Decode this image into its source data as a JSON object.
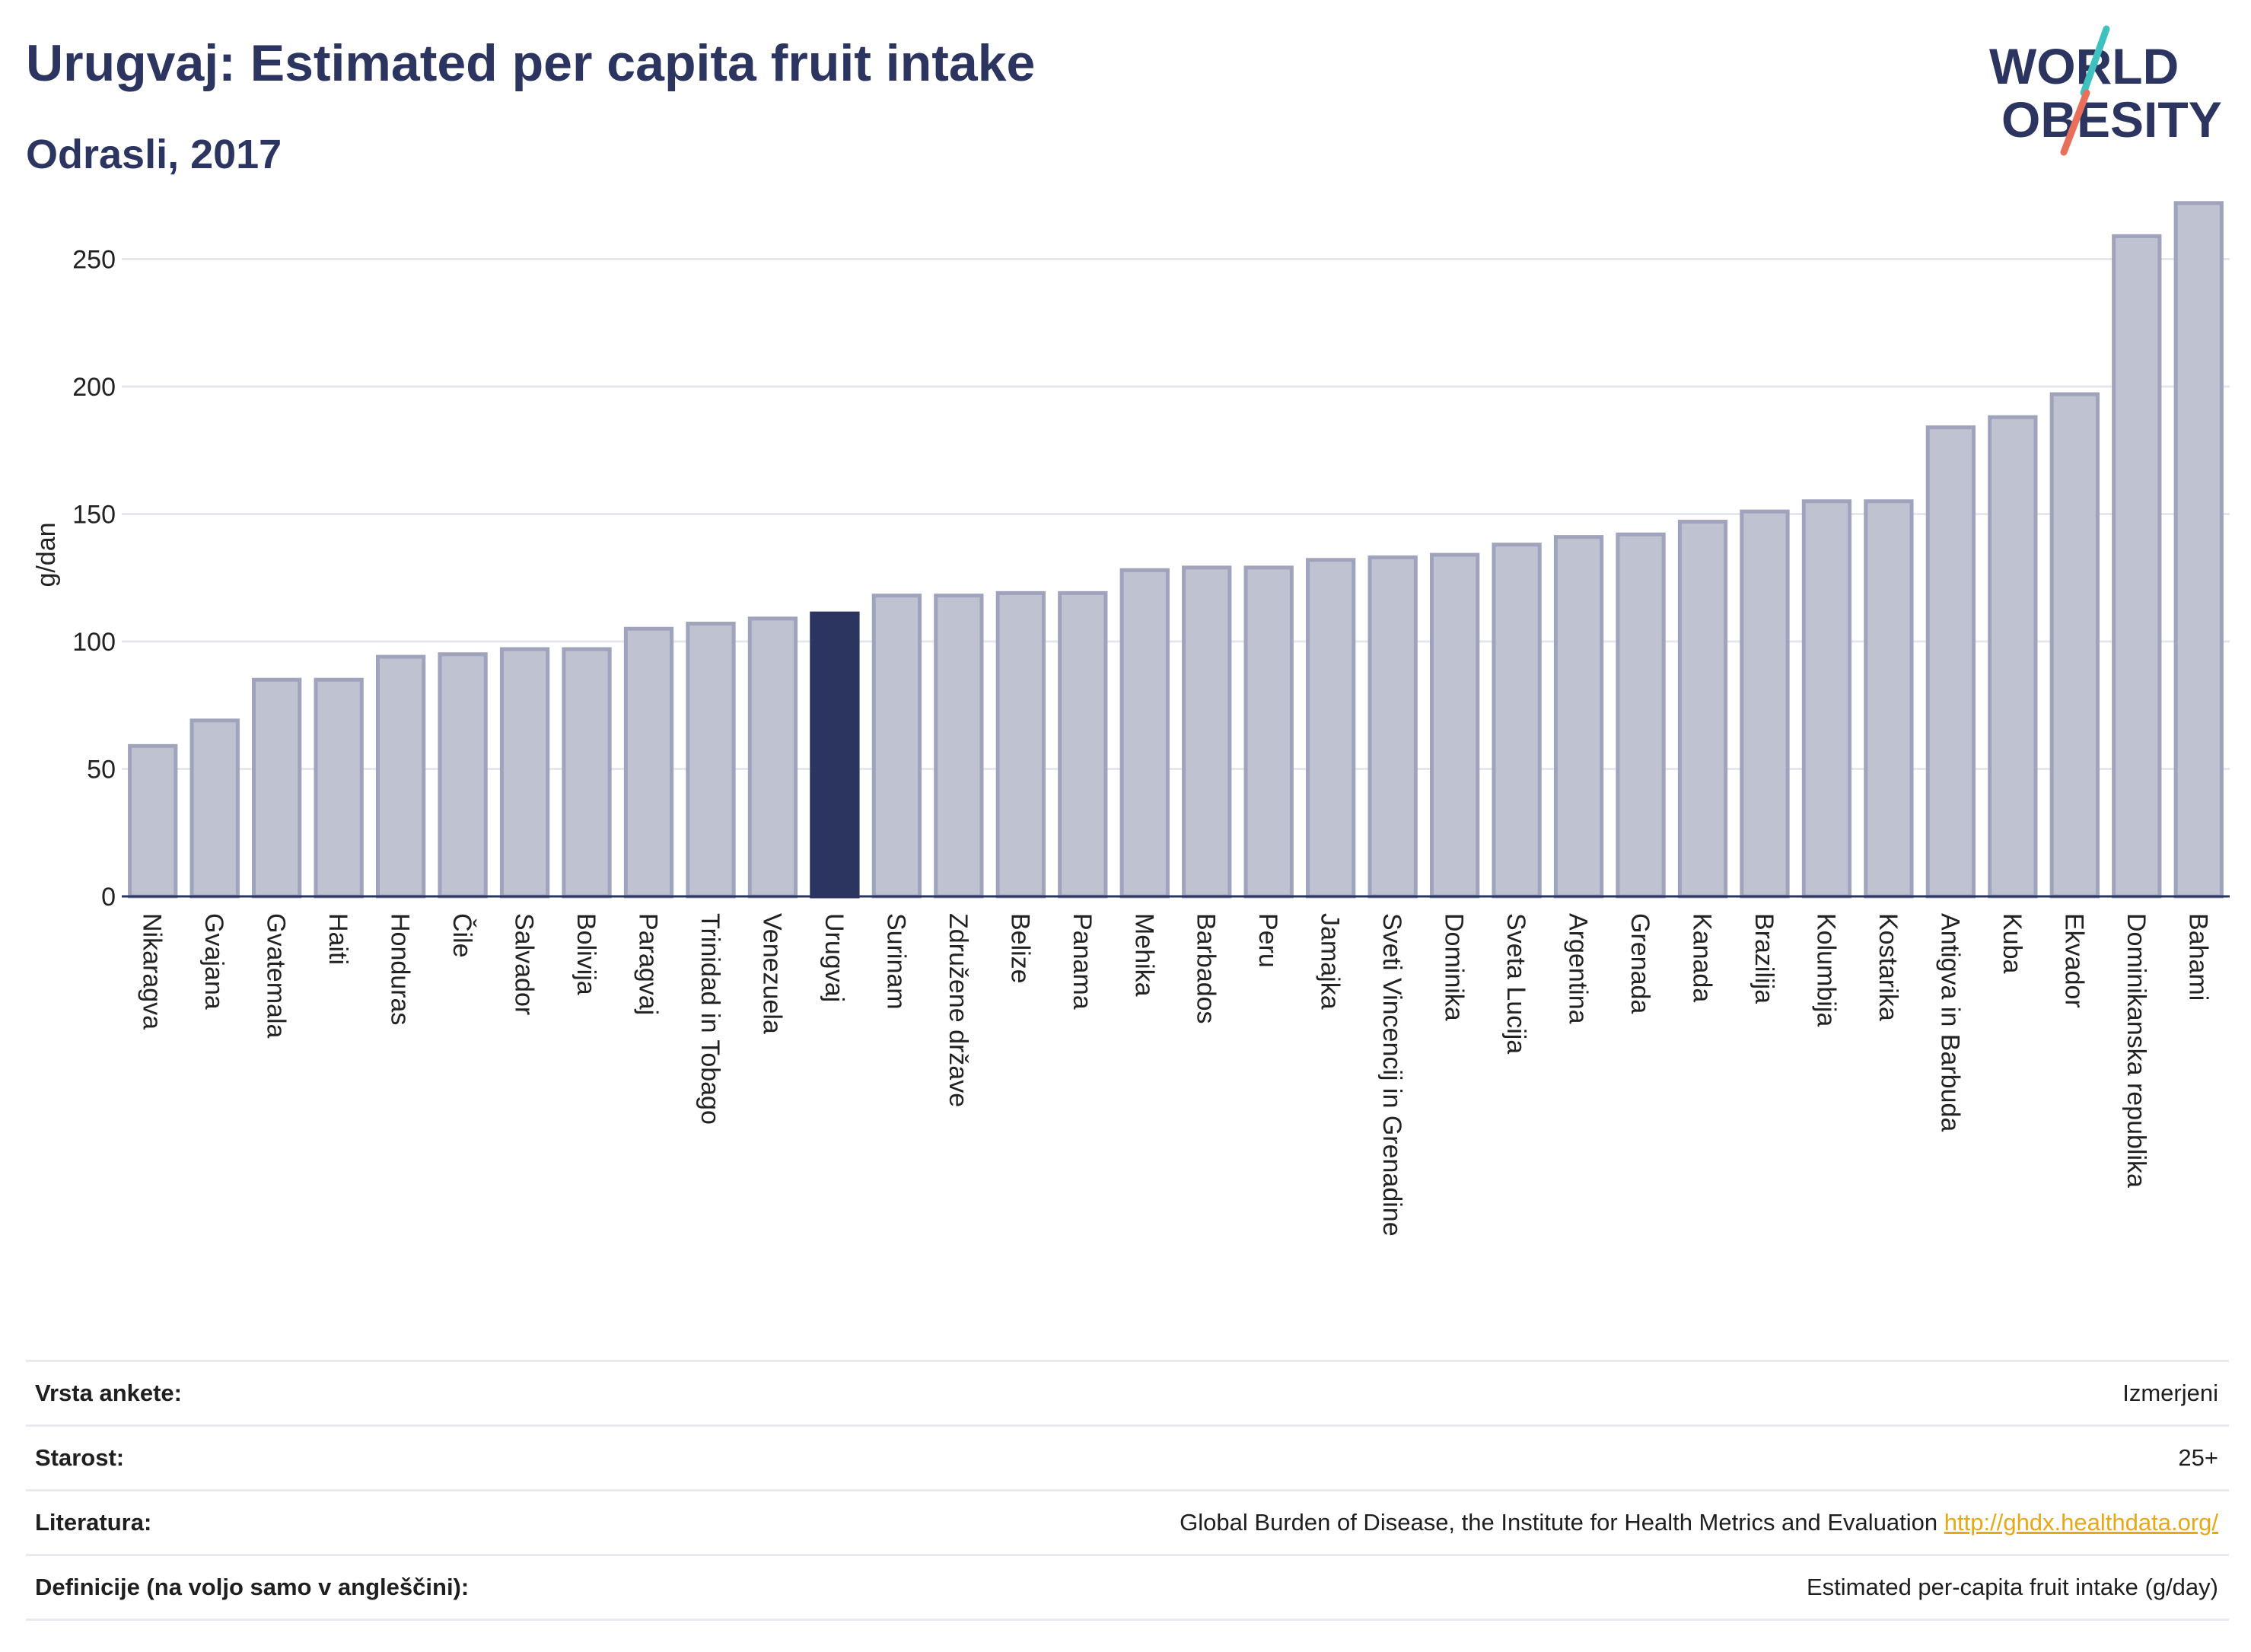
{
  "header": {
    "title": "Urugvaj: Estimated per capita fruit intake",
    "subtitle": "Odrasli, 2017"
  },
  "logo": {
    "line1": "WORLD",
    "line2": "OBESITY",
    "slash_colors": [
      "#3fc1c0",
      "#e8705a"
    ]
  },
  "chart_data": {
    "type": "bar",
    "ylabel": "g/dan",
    "ylim": [
      0,
      280
    ],
    "yticks": [
      0,
      50,
      100,
      150,
      200,
      250
    ],
    "grid": true,
    "highlight": "Urugvaj",
    "colors": {
      "bar": "#bfc2d0",
      "bar_edge": "#9fa3bb",
      "highlight": "#2b3560"
    },
    "categories": [
      "Nikaragva",
      "Gvajana",
      "Gvatemala",
      "Haiti",
      "Honduras",
      "Čile",
      "Salvador",
      "Bolivija",
      "Paragvaj",
      "Trinidad in Tobago",
      "Venezuela",
      "Urugvaj",
      "Surinam",
      "Združene države",
      "Belize",
      "Panama",
      "Mehika",
      "Barbados",
      "Peru",
      "Jamajka",
      "Sveti Vincencij in Grenadine",
      "Dominika",
      "Sveta Lucija",
      "Argentina",
      "Grenada",
      "Kanada",
      "Brazilija",
      "Kolumbija",
      "Kostarika",
      "Antigva in Barbuda",
      "Kuba",
      "Ekvador",
      "Dominikanska republika",
      "Bahami"
    ],
    "values": [
      59,
      69,
      85,
      85,
      94,
      95,
      97,
      97,
      105,
      107,
      109,
      111,
      118,
      118,
      119,
      119,
      128,
      129,
      129,
      132,
      133,
      134,
      138,
      141,
      142,
      147,
      151,
      155,
      155,
      184,
      188,
      197,
      259,
      272
    ]
  },
  "info": [
    {
      "label": "Vrsta ankete:",
      "value": "Izmerjeni"
    },
    {
      "label": "Starost:",
      "value": "25+"
    },
    {
      "label": "Literatura:",
      "value": "Global Burden of Disease, the Institute for Health Metrics and Evaluation",
      "link": "http://ghdx.healthdata.org/"
    },
    {
      "label": "Definicije (na voljo samo v angleščini):",
      "value": "Estimated per-capita fruit intake (g/day)"
    }
  ]
}
